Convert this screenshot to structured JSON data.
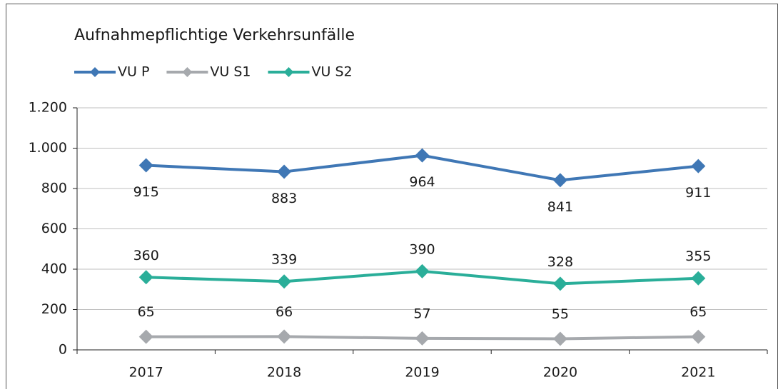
{
  "chart_data": {
    "type": "line",
    "title": "Aufnahmepflichtige Verkehrsunfälle",
    "categories": [
      "2017",
      "2018",
      "2019",
      "2020",
      "2021"
    ],
    "series": [
      {
        "name": "VU P",
        "color": "#3f77b5",
        "values": [
          915,
          883,
          964,
          841,
          911
        ]
      },
      {
        "name": "VU S1",
        "color": "#a6a9ad",
        "values": [
          65,
          66,
          57,
          55,
          65
        ]
      },
      {
        "name": "VU S2",
        "color": "#2aae99",
        "values": [
          360,
          339,
          390,
          328,
          355
        ]
      }
    ],
    "ylim": [
      0,
      1200
    ],
    "yticks": [
      0,
      200,
      400,
      600,
      800,
      {
        "value": 1000,
        "label": "1.000"
      },
      {
        "value": 1200,
        "label": "1.200"
      }
    ],
    "grid": true,
    "legend": "top-left"
  }
}
